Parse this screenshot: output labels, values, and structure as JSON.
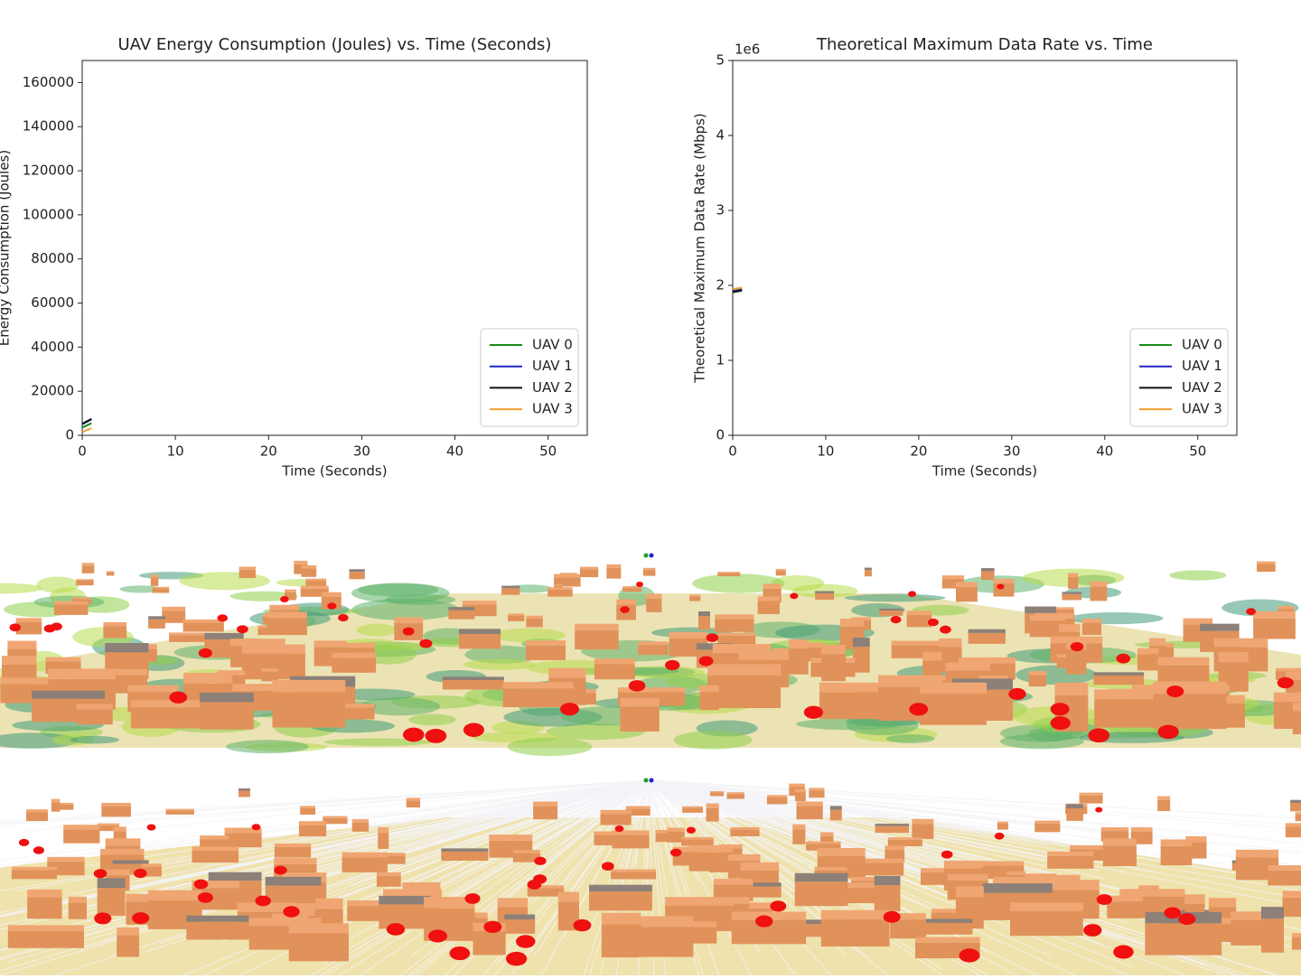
{
  "chart_data": [
    {
      "type": "line",
      "title": "UAV Energy Consumption (Joules) vs. Time (Seconds)",
      "x_label": "Time (Seconds)",
      "y_label": "Energy Consumption (Joules)",
      "x": [
        0,
        1
      ],
      "series": [
        {
          "name": "UAV 0",
          "color": "#1a8a1a",
          "values": [
            3500,
            5500
          ]
        },
        {
          "name": "UAV 1",
          "color": "#2222cc",
          "values": [
            5000,
            7200
          ]
        },
        {
          "name": "UAV 2",
          "color": "#111111",
          "values": [
            5200,
            7500
          ]
        },
        {
          "name": "UAV 3",
          "color": "#f0a030",
          "values": [
            1500,
            3200
          ]
        }
      ],
      "xlim": [
        0,
        54.2
      ],
      "xticks": [
        0,
        10,
        20,
        30,
        40,
        50
      ],
      "ylim": [
        0,
        170000
      ],
      "yticks": [
        0,
        20000,
        40000,
        60000,
        80000,
        100000,
        120000,
        140000,
        160000
      ],
      "legend": "lower right"
    },
    {
      "type": "line",
      "title": "Theoretical Maximum Data Rate vs. Time",
      "x_label": "Time (Seconds)",
      "y_label": "Theoretical Maximum Data Rate (Mbps)",
      "y_offset_label": "1e6",
      "x": [
        0,
        1
      ],
      "series": [
        {
          "name": "UAV 0",
          "color": "#1a8a1a",
          "values": [
            1.93,
            1.95
          ]
        },
        {
          "name": "UAV 1",
          "color": "#2222cc",
          "values": [
            1.92,
            1.94
          ]
        },
        {
          "name": "UAV 2",
          "color": "#111111",
          "values": [
            1.91,
            1.93
          ]
        },
        {
          "name": "UAV 3",
          "color": "#f0a030",
          "values": [
            1.95,
            1.97
          ]
        }
      ],
      "xlim": [
        0,
        54.2
      ],
      "xticks": [
        0,
        10,
        20,
        30,
        40,
        50
      ],
      "ylim": [
        0,
        5
      ],
      "yticks": [
        0,
        1,
        2,
        3,
        4,
        5
      ],
      "legend": "lower right"
    }
  ]
}
